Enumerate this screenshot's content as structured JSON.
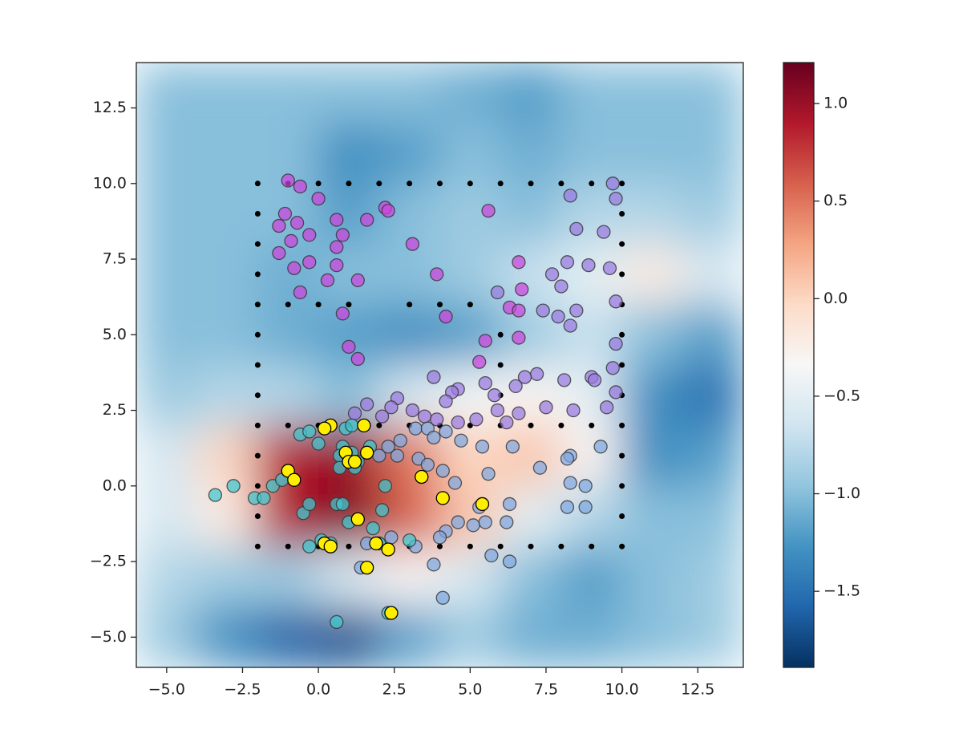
{
  "chart_data": {
    "type": "heatmap",
    "xlim": [
      -6,
      14
    ],
    "ylim": [
      -6,
      14
    ],
    "xticks": [
      {
        "value": -5,
        "label": "−5.0"
      },
      {
        "value": -2.5,
        "label": "−2.5"
      },
      {
        "value": 0,
        "label": "0.0"
      },
      {
        "value": 2.5,
        "label": "2.5"
      },
      {
        "value": 5,
        "label": "5.0"
      },
      {
        "value": 7.5,
        "label": "7.5"
      },
      {
        "value": 10,
        "label": "10.0"
      },
      {
        "value": 12.5,
        "label": "12.5"
      }
    ],
    "yticks": [
      {
        "value": -5,
        "label": "−5.0"
      },
      {
        "value": -2.5,
        "label": "−2.5"
      },
      {
        "value": 0,
        "label": "0.0"
      },
      {
        "value": 2.5,
        "label": "2.5"
      },
      {
        "value": 5,
        "label": "5.0"
      },
      {
        "value": 7.5,
        "label": "7.5"
      },
      {
        "value": 10,
        "label": "10.0"
      },
      {
        "value": 12.5,
        "label": "12.5"
      }
    ],
    "heatmap": {
      "x": [
        -5,
        -3,
        -1,
        1,
        3,
        5,
        7,
        9,
        11,
        13
      ],
      "y": [
        -5,
        -3,
        -1,
        1,
        3,
        5,
        7,
        9,
        11,
        13
      ],
      "values": [
        [
          -0.9,
          -1.3,
          -1.6,
          -1.7,
          -1.2,
          -0.9,
          -1.1,
          -1.1,
          -1.0,
          -0.9
        ],
        [
          -0.8,
          -0.9,
          -0.9,
          -0.6,
          -0.3,
          -0.6,
          -1.0,
          -1.2,
          -1.0,
          -0.9
        ],
        [
          -0.6,
          -0.2,
          0.9,
          1.1,
          0.6,
          0.1,
          -0.5,
          -0.8,
          -1.0,
          -1.0
        ],
        [
          -0.6,
          0.0,
          0.9,
          1.0,
          0.5,
          0.0,
          0.1,
          -0.3,
          -1.3,
          -1.2
        ],
        [
          -0.9,
          -0.8,
          -0.8,
          -1.0,
          -0.6,
          -0.4,
          -0.3,
          -0.5,
          -1.3,
          -1.5
        ],
        [
          -1.0,
          -1.0,
          -1.1,
          -1.2,
          -1.3,
          -1.2,
          -0.9,
          -0.7,
          -1.0,
          -1.2
        ],
        [
          -1.0,
          -1.0,
          -1.1,
          -1.0,
          -1.0,
          -0.9,
          -0.7,
          -0.5,
          -0.2,
          -0.6
        ],
        [
          -1.0,
          -1.0,
          -1.0,
          -1.2,
          -1.0,
          -0.9,
          -1.0,
          -0.8,
          -0.8,
          -0.9
        ],
        [
          -1.0,
          -1.0,
          -1.0,
          -1.3,
          -1.2,
          -1.0,
          -1.1,
          -1.0,
          -1.0,
          -1.0
        ],
        [
          -1.0,
          -1.0,
          -1.0,
          -1.0,
          -1.0,
          -1.1,
          -1.2,
          -1.0,
          -1.0,
          -1.0
        ]
      ],
      "colormap": [
        "#053061",
        "#2166ac",
        "#4393c3",
        "#92c5de",
        "#d1e5f0",
        "#f7f7f7",
        "#fddbc7",
        "#f4a582",
        "#d6604d",
        "#b2182b",
        "#67001f"
      ],
      "clim": [
        -1.89,
        1.21
      ],
      "colorbar_ticks": [
        {
          "value": 1.0,
          "label": "1.0"
        },
        {
          "value": 0.5,
          "label": "0.5"
        },
        {
          "value": 0,
          "label": "0.0"
        },
        {
          "value": -0.5,
          "label": "−0.5"
        },
        {
          "value": -1.0,
          "label": "−1.0"
        },
        {
          "value": -1.5,
          "label": "−1.5"
        }
      ]
    },
    "series": [
      {
        "color": "#000000",
        "x": [
          -2,
          -1,
          0,
          1,
          2,
          3,
          4,
          5,
          6,
          7,
          8,
          9,
          10,
          -2,
          -1,
          0,
          1,
          2,
          3,
          4,
          5,
          6,
          7,
          8,
          9,
          10,
          -2,
          -2,
          -2,
          -2,
          -2,
          -2,
          -2,
          -2,
          -2,
          -2,
          -2,
          10,
          10,
          10,
          10,
          10,
          10,
          10,
          10,
          10,
          10,
          10,
          -1,
          0,
          1,
          3,
          4,
          5,
          -1,
          0,
          1,
          2,
          3,
          4,
          5,
          6,
          7,
          8,
          9,
          6,
          6,
          6
        ],
        "y": [
          10,
          10,
          10,
          10,
          10,
          10,
          10,
          10,
          10,
          10,
          10,
          10,
          10,
          -2,
          -2,
          -2,
          -2,
          -2,
          -2,
          -2,
          -2,
          -2,
          -2,
          -2,
          -2,
          -2,
          -1,
          0,
          1,
          2,
          3,
          4,
          5,
          6,
          7,
          8,
          9,
          -1,
          0,
          1,
          2,
          3,
          4,
          5,
          6,
          7,
          8,
          9,
          6,
          6,
          6,
          6,
          6,
          6,
          2,
          2,
          2,
          2,
          2,
          2,
          2,
          2,
          2,
          2,
          2,
          3,
          4,
          5
        ]
      },
      {
        "color": "#cc44dd",
        "x": [
          -1,
          -0.6,
          0,
          -1.1,
          -0.7,
          -1.3,
          -0.3,
          -0.9,
          -1.3,
          -0.8,
          -0.3,
          0.3,
          -0.6,
          0.6,
          0.8,
          0.6,
          0.6,
          1.3,
          1.6,
          2.2,
          2.3,
          3.1,
          3.9,
          5.6,
          0.8,
          1.0,
          1.3,
          4.2,
          6.3,
          6.6,
          6.6,
          6.7,
          6.6,
          5.5,
          5.3
        ],
        "y": [
          10.1,
          9.9,
          9.5,
          9,
          8.7,
          8.6,
          8.3,
          8.1,
          7.7,
          7.2,
          7.4,
          6.8,
          6.4,
          8.8,
          8.3,
          7.9,
          7.3,
          6.8,
          8.8,
          9.2,
          9.1,
          8.0,
          7.0,
          9.1,
          5.7,
          4.6,
          4.2,
          5.6,
          5.9,
          4.9,
          7.4,
          6.5,
          5.8,
          4.8,
          4.1
        ]
      },
      {
        "color": "#9a7ae0",
        "x": [
          8.3,
          9.7,
          9.8,
          8.5,
          9.4,
          8.9,
          8.2,
          7.7,
          8.0,
          9.6,
          9.8,
          7.4,
          7.9,
          8.5,
          8.3,
          9.8,
          9.7,
          5.9,
          9.0,
          9.1,
          8.1,
          7.2,
          6.8,
          6.5,
          5.8,
          5.9,
          5.5,
          4.6,
          4.4,
          4.2,
          3.8,
          9.8,
          9.5,
          8.4,
          7.5,
          6.6,
          6.2,
          5.2,
          4.6,
          3.9,
          3.5,
          3.1,
          2.6,
          2.4,
          2.1,
          1.6,
          1.2
        ],
        "y": [
          9.6,
          10,
          9.5,
          8.5,
          8.4,
          7.3,
          7.4,
          7.0,
          6.6,
          7.2,
          6.1,
          5.8,
          5.6,
          5.8,
          5.3,
          4.7,
          3.9,
          6.4,
          3.6,
          3.5,
          3.5,
          3.7,
          3.6,
          3.3,
          3.0,
          2.5,
          3.4,
          3.2,
          3.1,
          2.8,
          3.6,
          3.1,
          2.6,
          2.5,
          2.6,
          2.4,
          2.1,
          2.2,
          2.1,
          2.2,
          2.3,
          2.5,
          2.9,
          2.6,
          2.3,
          2.7,
          2.4
        ]
      },
      {
        "color": "#80a8e0",
        "x": [
          3.2,
          3.6,
          4.2,
          4.7,
          3.8,
          2.7,
          2.3,
          2.0,
          2.6,
          3.3,
          3.6,
          4.1,
          5.4,
          6.4,
          7.3,
          8.3,
          8.2,
          9.3,
          8.3,
          8.8,
          8.2,
          8.8,
          5.3,
          5.5,
          5.1,
          6.2,
          6.3,
          4.6,
          4.2,
          4.0,
          3.2,
          3.8,
          4.1,
          5.7,
          6.3,
          5.6,
          4.5,
          2.4,
          2.0,
          1.6,
          1.4
        ],
        "y": [
          1.9,
          1.9,
          1.8,
          1.5,
          1.6,
          1.5,
          1.3,
          1.0,
          1.0,
          0.9,
          0.7,
          0.5,
          1.3,
          1.3,
          0.6,
          1.0,
          0.9,
          1.3,
          0.1,
          0.0,
          -0.7,
          -0.7,
          -0.7,
          -1.2,
          -1.3,
          -1.2,
          -0.6,
          -1.2,
          -1.5,
          -1.7,
          -2.0,
          -2.6,
          -3.7,
          -2.3,
          -2.5,
          0.4,
          0.1,
          -1.7,
          -1.9,
          -1.9,
          -2.7
        ]
      },
      {
        "color": "#40c8d0",
        "x": [
          -3.4,
          -2.8,
          -2.1,
          -1.8,
          -1.5,
          -1.2,
          -0.5,
          -0.3,
          0.1,
          0.4,
          -0.3,
          0.0,
          -0.6,
          -0.3,
          0.8,
          1.1,
          0.7,
          1.3,
          0.7,
          1.2,
          0.6,
          0.8,
          1.8,
          2.1,
          1.0,
          2.0,
          2.3,
          0.6,
          0.9,
          1.1,
          1.7,
          2.2,
          3.0
        ],
        "y": [
          -0.3,
          0.0,
          -0.4,
          -0.4,
          0.0,
          0.2,
          -0.9,
          -0.6,
          -1.8,
          -1.9,
          -2.0,
          1.4,
          1.7,
          1.8,
          1.3,
          1.1,
          1.0,
          0.8,
          0.6,
          0.6,
          -0.6,
          -0.6,
          -1.4,
          -0.8,
          -1.2,
          -1.9,
          -4.2,
          -4.5,
          1.9,
          2.0,
          1.3,
          0.0,
          -1.8
        ]
      },
      {
        "color": "#ffee00",
        "x": [
          0.4,
          0.2,
          1.5,
          0.9,
          1.6,
          1.0,
          1.2,
          -1.0,
          -0.8,
          3.4,
          4.1,
          5.4,
          1.3,
          0.2,
          0.4,
          1.9,
          2.3,
          1.6,
          2.4
        ],
        "y": [
          2.0,
          1.9,
          2.0,
          1.1,
          1.1,
          0.8,
          0.8,
          0.5,
          0.2,
          0.3,
          -0.4,
          -0.6,
          -1.1,
          -1.9,
          -2.0,
          -1.9,
          -2.1,
          -2.7,
          -4.2
        ]
      }
    ]
  }
}
